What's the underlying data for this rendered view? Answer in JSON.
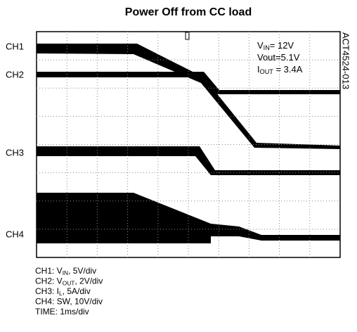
{
  "title": "Power Off from CC load",
  "side_label": "ACT4524-013",
  "channels": [
    "CH1",
    "CH2",
    "CH3",
    "CH4"
  ],
  "annotations": [
    {
      "main": "V",
      "sub": "IN",
      "rest": "= 12V"
    },
    {
      "main": "Vout=5.1V",
      "sub": "",
      "rest": ""
    },
    {
      "main": "I",
      "sub": "OUT",
      "rest": " = 3.4A"
    }
  ],
  "notes": [
    {
      "main": "CH1: V",
      "sub": "IN",
      "rest": ", 5V/div"
    },
    {
      "main": "CH2: V",
      "sub": "OUT",
      "rest": ", 2V/div"
    },
    {
      "main": "CH3: I",
      "sub": "L",
      "rest": ", 5A/div"
    },
    {
      "main": "CH4: SW, 10V/div",
      "sub": "",
      "rest": ""
    },
    {
      "main": "TIME: 1ms/div",
      "sub": "",
      "rest": ""
    }
  ]
}
